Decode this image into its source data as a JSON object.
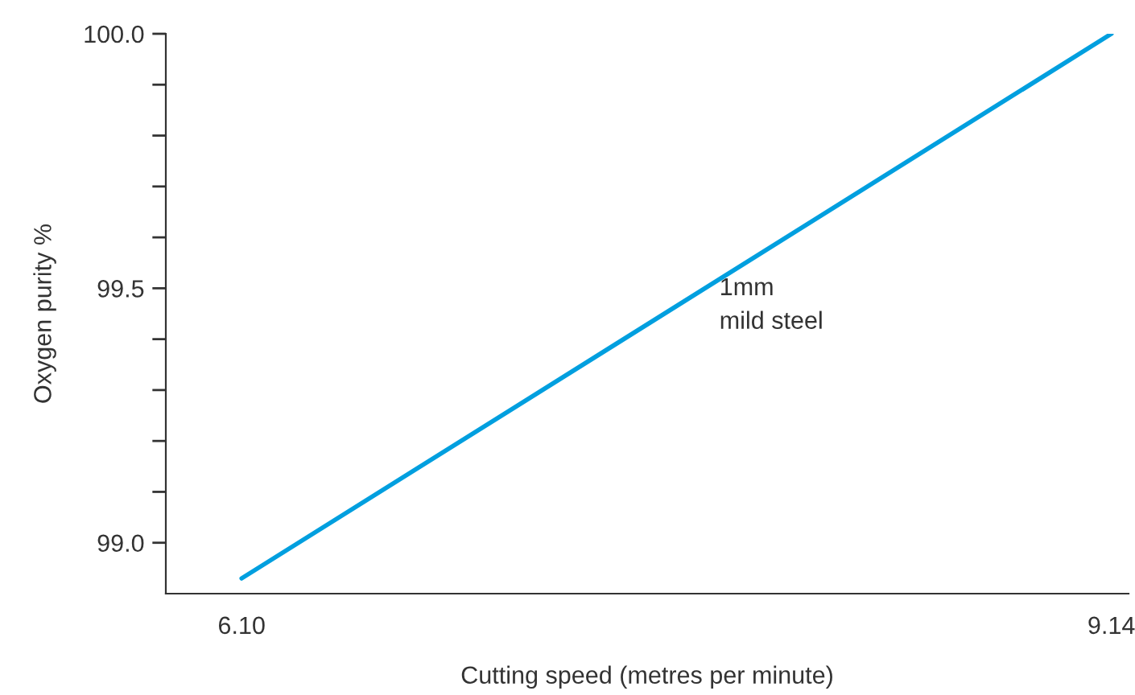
{
  "chart_data": {
    "type": "line",
    "xlabel": "Cutting speed (metres per minute)",
    "ylabel": "Oxygen purity %",
    "x": [
      6.1,
      9.14
    ],
    "series": [
      {
        "color": "#009fdf",
        "values": [
          98.93,
          100.0
        ]
      }
    ],
    "xlim": [
      5.835,
      9.2
    ],
    "xticks": [
      {
        "value": 6.1,
        "label": "6.10"
      },
      {
        "value": 9.14,
        "label": "9.14"
      }
    ],
    "ylim": [
      98.9,
      100.0
    ],
    "yticks": [
      {
        "value": 99.0,
        "label": "99.0"
      },
      {
        "value": 99.1,
        "label": null
      },
      {
        "value": 99.2,
        "label": null
      },
      {
        "value": 99.3,
        "label": null
      },
      {
        "value": 99.4,
        "label": null
      },
      {
        "value": 99.5,
        "label": "99.5"
      },
      {
        "value": 99.6,
        "label": null
      },
      {
        "value": 99.7,
        "label": null
      },
      {
        "value": 99.8,
        "label": null
      },
      {
        "value": 99.9,
        "label": null
      },
      {
        "value": 100.0,
        "label": "100.0"
      }
    ],
    "annotations": [
      "1mm\nmild steel"
    ],
    "grid": false,
    "legend": false
  }
}
